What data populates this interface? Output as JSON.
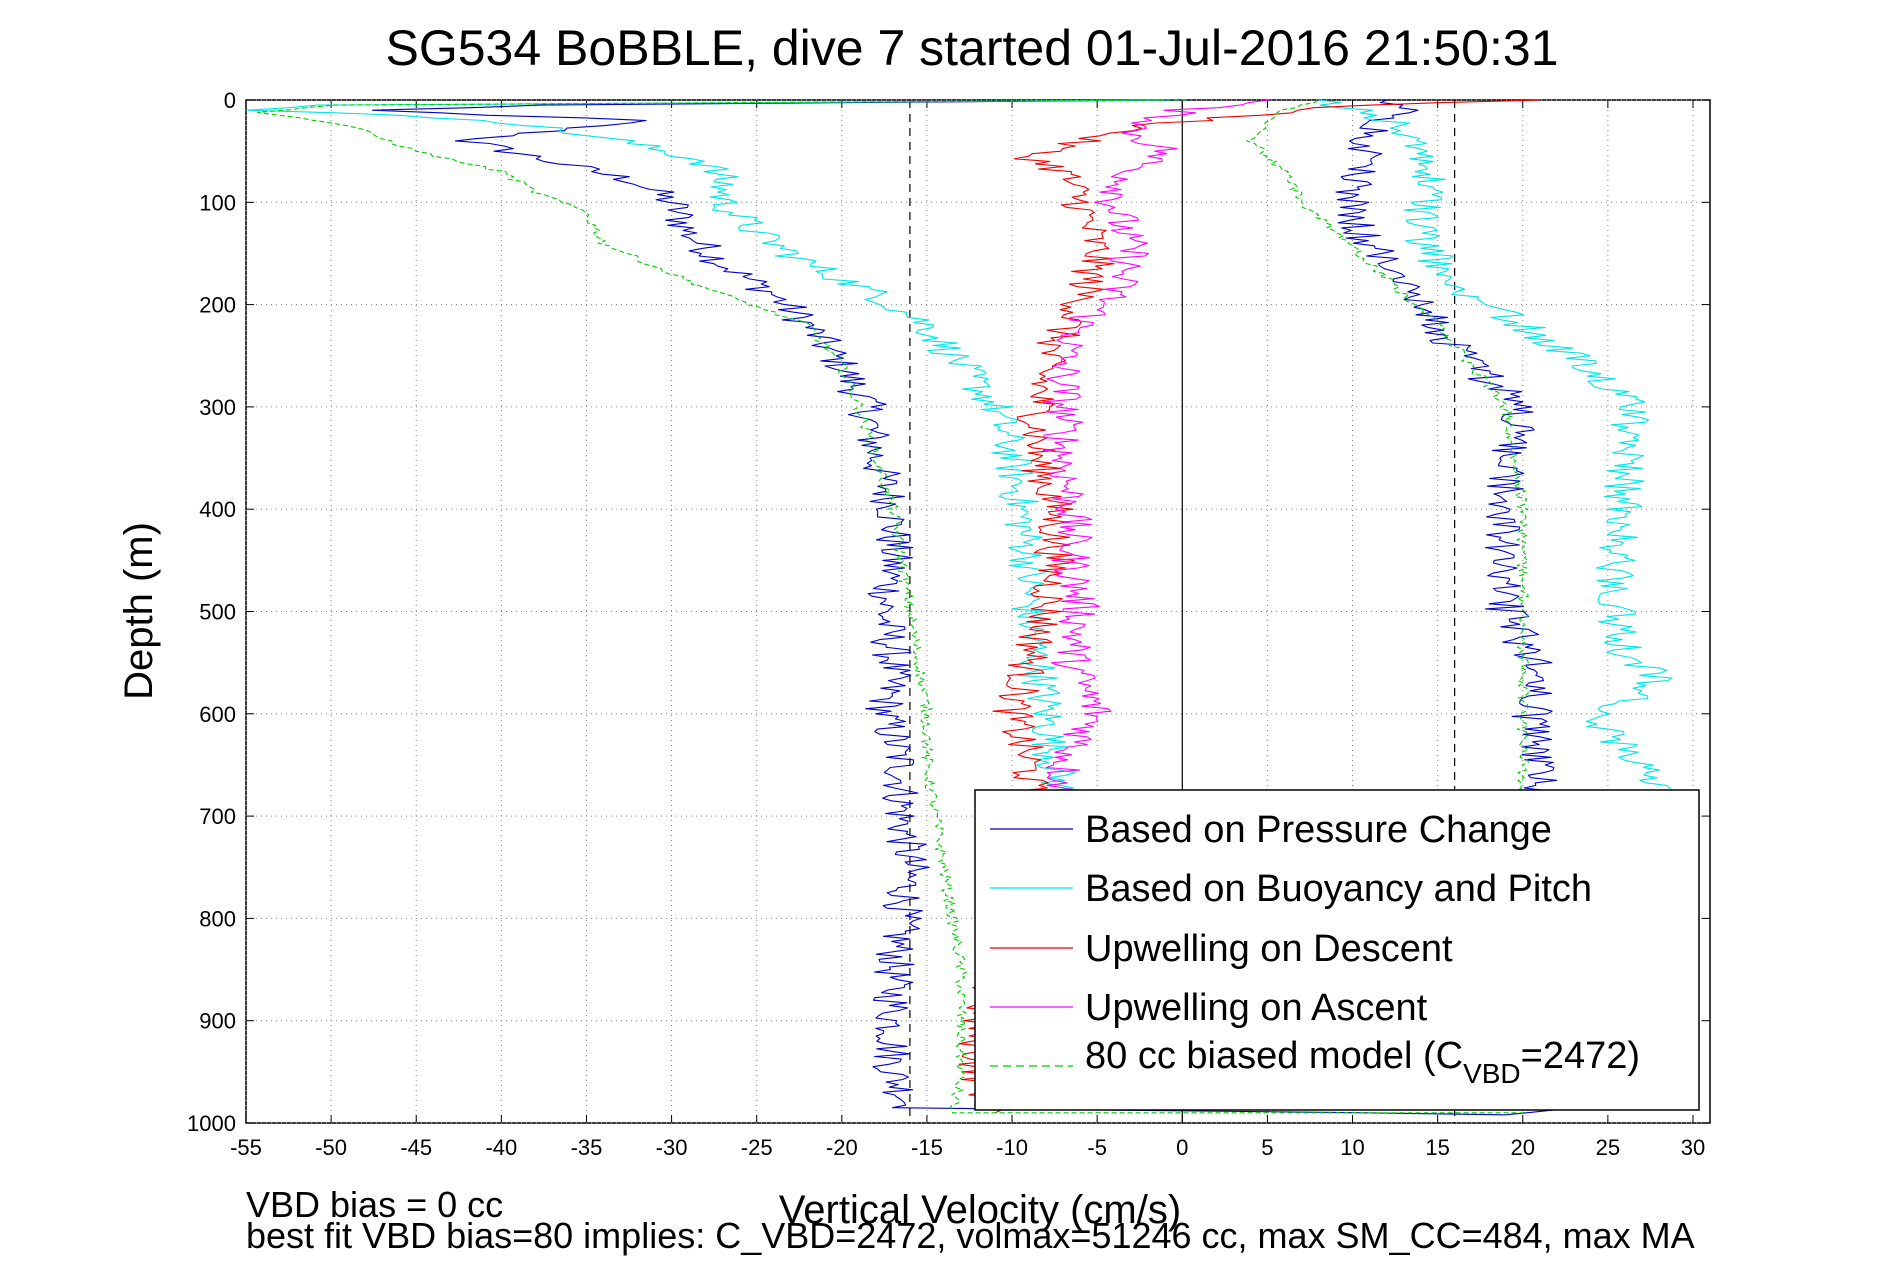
{
  "figure": {
    "title": "SG534 BoBBLE, dive 7 started 01-Jul-2016 21:50:31",
    "footer_line1": "VBD bias = 0 cc",
    "footer_line2": "best fit VBD bias=80 implies: C_VBD=2472, volmax=51246 cc, max SM_CC=484, max MA"
  },
  "chart_data": {
    "type": "line",
    "xlabel": "Vertical Velocity (cm/s)",
    "ylabel": "Depth (m)",
    "xlim": [
      -55,
      31
    ],
    "ylim": [
      0,
      1000
    ],
    "y_inverted": true,
    "xticks": [
      -55,
      -50,
      -45,
      -40,
      -35,
      -30,
      -25,
      -20,
      -15,
      -10,
      -5,
      0,
      5,
      10,
      15,
      20,
      25,
      30
    ],
    "yticks": [
      0,
      100,
      200,
      300,
      400,
      500,
      600,
      700,
      800,
      900,
      1000
    ],
    "grid": true,
    "grid_style": "dotted",
    "legend_position": "bottom-right",
    "reference_lines": [
      {
        "x": -16,
        "style": "dashed",
        "color": "#000000"
      },
      {
        "x": 0,
        "style": "solid",
        "color": "#000000"
      },
      {
        "x": 16,
        "style": "dashed",
        "color": "#000000"
      }
    ],
    "series": [
      {
        "name": "Based on Pressure Change",
        "color": "#0000cc",
        "style": "solid",
        "points": [
          {
            "depth": 0,
            "v": 0
          },
          {
            "depth": 5,
            "v": -38
          },
          {
            "depth": 10,
            "v": -48
          },
          {
            "depth": 20,
            "v": -32
          },
          {
            "depth": 40,
            "v": -42
          },
          {
            "depth": 60,
            "v": -37
          },
          {
            "depth": 80,
            "v": -32
          },
          {
            "depth": 100,
            "v": -30
          },
          {
            "depth": 130,
            "v": -29
          },
          {
            "depth": 160,
            "v": -27
          },
          {
            "depth": 190,
            "v": -24
          },
          {
            "depth": 220,
            "v": -22
          },
          {
            "depth": 260,
            "v": -20
          },
          {
            "depth": 300,
            "v": -18.5
          },
          {
            "depth": 350,
            "v": -18
          },
          {
            "depth": 400,
            "v": -17
          },
          {
            "depth": 450,
            "v": -17
          },
          {
            "depth": 500,
            "v": -17.5
          },
          {
            "depth": 550,
            "v": -17
          },
          {
            "depth": 600,
            "v": -17.5
          },
          {
            "depth": 650,
            "v": -16.5
          },
          {
            "depth": 700,
            "v": -16.5
          },
          {
            "depth": 750,
            "v": -16
          },
          {
            "depth": 800,
            "v": -16.5
          },
          {
            "depth": 850,
            "v": -17
          },
          {
            "depth": 900,
            "v": -17
          },
          {
            "depth": 950,
            "v": -17
          },
          {
            "depth": 985,
            "v": -16
          },
          {
            "depth": 992,
            "v": 20
          },
          {
            "depth": 980,
            "v": 22
          },
          {
            "depth": 950,
            "v": 22
          },
          {
            "depth": 900,
            "v": 22
          },
          {
            "depth": 850,
            "v": 22
          },
          {
            "depth": 800,
            "v": 22
          },
          {
            "depth": 750,
            "v": 22
          },
          {
            "depth": 700,
            "v": 21.5
          },
          {
            "depth": 650,
            "v": 21
          },
          {
            "depth": 600,
            "v": 20.5
          },
          {
            "depth": 560,
            "v": 21
          },
          {
            "depth": 500,
            "v": 19
          },
          {
            "depth": 450,
            "v": 18.5
          },
          {
            "depth": 400,
            "v": 19
          },
          {
            "depth": 350,
            "v": 19
          },
          {
            "depth": 300,
            "v": 20
          },
          {
            "depth": 260,
            "v": 17
          },
          {
            "depth": 220,
            "v": 15
          },
          {
            "depth": 190,
            "v": 14
          },
          {
            "depth": 160,
            "v": 12
          },
          {
            "depth": 130,
            "v": 10.5
          },
          {
            "depth": 100,
            "v": 10
          },
          {
            "depth": 70,
            "v": 10.5
          },
          {
            "depth": 40,
            "v": 11
          },
          {
            "depth": 20,
            "v": 12
          },
          {
            "depth": 10,
            "v": 13
          },
          {
            "depth": 0,
            "v": 12
          }
        ]
      },
      {
        "name": "Based on Buoyancy and Pitch",
        "color": "#00e5e5",
        "style": "solid",
        "points": [
          {
            "depth": 0,
            "v": 0
          },
          {
            "depth": 5,
            "v": -50
          },
          {
            "depth": 10,
            "v": -54
          },
          {
            "depth": 20,
            "v": -40
          },
          {
            "depth": 40,
            "v": -33
          },
          {
            "depth": 60,
            "v": -28
          },
          {
            "depth": 80,
            "v": -27
          },
          {
            "depth": 100,
            "v": -27
          },
          {
            "depth": 130,
            "v": -25
          },
          {
            "depth": 160,
            "v": -22
          },
          {
            "depth": 190,
            "v": -18
          },
          {
            "depth": 220,
            "v": -15
          },
          {
            "depth": 260,
            "v": -13
          },
          {
            "depth": 300,
            "v": -11
          },
          {
            "depth": 350,
            "v": -10
          },
          {
            "depth": 400,
            "v": -9.5
          },
          {
            "depth": 450,
            "v": -9
          },
          {
            "depth": 500,
            "v": -9
          },
          {
            "depth": 550,
            "v": -8.5
          },
          {
            "depth": 600,
            "v": -8
          },
          {
            "depth": 650,
            "v": -7.5
          },
          {
            "depth": 690,
            "v": -7
          },
          {
            "depth": 690,
            "v": 28
          },
          {
            "depth": 650,
            "v": 27
          },
          {
            "depth": 600,
            "v": 24
          },
          {
            "depth": 580,
            "v": 27
          },
          {
            "depth": 560,
            "v": 28
          },
          {
            "depth": 550,
            "v": 26
          },
          {
            "depth": 500,
            "v": 25.5
          },
          {
            "depth": 450,
            "v": 25.5
          },
          {
            "depth": 400,
            "v": 26
          },
          {
            "depth": 350,
            "v": 26
          },
          {
            "depth": 300,
            "v": 26.5
          },
          {
            "depth": 260,
            "v": 24
          },
          {
            "depth": 220,
            "v": 20
          },
          {
            "depth": 190,
            "v": 17
          },
          {
            "depth": 160,
            "v": 15
          },
          {
            "depth": 130,
            "v": 14
          },
          {
            "depth": 100,
            "v": 14
          },
          {
            "depth": 70,
            "v": 14.5
          },
          {
            "depth": 40,
            "v": 14
          },
          {
            "depth": 20,
            "v": 12
          },
          {
            "depth": 0,
            "v": 8
          }
        ]
      },
      {
        "name": "Upwelling on Descent",
        "color": "#ee0000",
        "style": "solid",
        "points": [
          {
            "depth": 0,
            "v": 22
          },
          {
            "depth": 5,
            "v": 10
          },
          {
            "depth": 15,
            "v": 4
          },
          {
            "depth": 25,
            "v": -2
          },
          {
            "depth": 40,
            "v": -6
          },
          {
            "depth": 55,
            "v": -9
          },
          {
            "depth": 70,
            "v": -7
          },
          {
            "depth": 100,
            "v": -6
          },
          {
            "depth": 150,
            "v": -5
          },
          {
            "depth": 200,
            "v": -6
          },
          {
            "depth": 250,
            "v": -8
          },
          {
            "depth": 300,
            "v": -8.5
          },
          {
            "depth": 350,
            "v": -8.5
          },
          {
            "depth": 400,
            "v": -7.5
          },
          {
            "depth": 450,
            "v": -7.5
          },
          {
            "depth": 500,
            "v": -8
          },
          {
            "depth": 550,
            "v": -9
          },
          {
            "depth": 600,
            "v": -10
          },
          {
            "depth": 650,
            "v": -9
          },
          {
            "depth": 700,
            "v": -9
          },
          {
            "depth": 750,
            "v": -9
          },
          {
            "depth": 800,
            "v": -10
          },
          {
            "depth": 850,
            "v": -11
          },
          {
            "depth": 900,
            "v": -12
          },
          {
            "depth": 950,
            "v": -12
          },
          {
            "depth": 990,
            "v": -11
          }
        ]
      },
      {
        "name": "Upwelling on Ascent",
        "color": "#ff00ff",
        "style": "solid",
        "points": [
          {
            "depth": 0,
            "v": 5
          },
          {
            "depth": 10,
            "v": 0
          },
          {
            "depth": 30,
            "v": -3
          },
          {
            "depth": 50,
            "v": -1
          },
          {
            "depth": 70,
            "v": -3
          },
          {
            "depth": 100,
            "v": -4
          },
          {
            "depth": 150,
            "v": -3
          },
          {
            "depth": 190,
            "v": -4
          },
          {
            "depth": 220,
            "v": -6
          },
          {
            "depth": 250,
            "v": -7
          },
          {
            "depth": 300,
            "v": -7
          },
          {
            "depth": 350,
            "v": -7
          },
          {
            "depth": 400,
            "v": -6.5
          },
          {
            "depth": 450,
            "v": -6.5
          },
          {
            "depth": 500,
            "v": -6
          },
          {
            "depth": 550,
            "v": -6.5
          },
          {
            "depth": 600,
            "v": -5
          },
          {
            "depth": 650,
            "v": -7
          },
          {
            "depth": 690,
            "v": -7
          }
        ]
      },
      {
        "name": "80 cc biased model (C_VBD=2472)",
        "legend_label_main": "80 cc biased model (C",
        "legend_label_sub": "VBD",
        "legend_label_tail": "=2472)",
        "color": "#00cc00",
        "style": "dashed",
        "points": [
          {
            "depth": 0,
            "v": 0
          },
          {
            "depth": 5,
            "v": -50
          },
          {
            "depth": 12,
            "v": -54
          },
          {
            "depth": 25,
            "v": -49
          },
          {
            "depth": 50,
            "v": -45
          },
          {
            "depth": 70,
            "v": -40
          },
          {
            "depth": 90,
            "v": -38
          },
          {
            "depth": 110,
            "v": -35
          },
          {
            "depth": 140,
            "v": -34
          },
          {
            "depth": 170,
            "v": -30
          },
          {
            "depth": 190,
            "v": -27
          },
          {
            "depth": 220,
            "v": -22
          },
          {
            "depth": 260,
            "v": -20
          },
          {
            "depth": 300,
            "v": -19
          },
          {
            "depth": 350,
            "v": -18
          },
          {
            "depth": 400,
            "v": -17
          },
          {
            "depth": 450,
            "v": -16.5
          },
          {
            "depth": 500,
            "v": -16
          },
          {
            "depth": 550,
            "v": -15.5
          },
          {
            "depth": 600,
            "v": -15
          },
          {
            "depth": 650,
            "v": -15
          },
          {
            "depth": 700,
            "v": -14.5
          },
          {
            "depth": 750,
            "v": -14
          },
          {
            "depth": 800,
            "v": -13.5
          },
          {
            "depth": 850,
            "v": -13
          },
          {
            "depth": 900,
            "v": -13
          },
          {
            "depth": 950,
            "v": -13
          },
          {
            "depth": 990,
            "v": -13.5
          },
          {
            "depth": 990,
            "v": 20
          },
          {
            "depth": 950,
            "v": 20
          },
          {
            "depth": 900,
            "v": 20
          },
          {
            "depth": 850,
            "v": 20
          },
          {
            "depth": 800,
            "v": 20
          },
          {
            "depth": 750,
            "v": 20
          },
          {
            "depth": 700,
            "v": 20
          },
          {
            "depth": 650,
            "v": 20
          },
          {
            "depth": 600,
            "v": 20
          },
          {
            "depth": 550,
            "v": 20
          },
          {
            "depth": 500,
            "v": 20
          },
          {
            "depth": 450,
            "v": 20
          },
          {
            "depth": 400,
            "v": 20
          },
          {
            "depth": 350,
            "v": 19.5
          },
          {
            "depth": 300,
            "v": 19
          },
          {
            "depth": 260,
            "v": 17
          },
          {
            "depth": 220,
            "v": 15
          },
          {
            "depth": 190,
            "v": 13
          },
          {
            "depth": 160,
            "v": 11
          },
          {
            "depth": 130,
            "v": 9
          },
          {
            "depth": 100,
            "v": 7
          },
          {
            "depth": 70,
            "v": 6
          },
          {
            "depth": 40,
            "v": 4
          },
          {
            "depth": 20,
            "v": 5
          },
          {
            "depth": 10,
            "v": 6
          },
          {
            "depth": 0,
            "v": 8
          }
        ]
      }
    ]
  }
}
